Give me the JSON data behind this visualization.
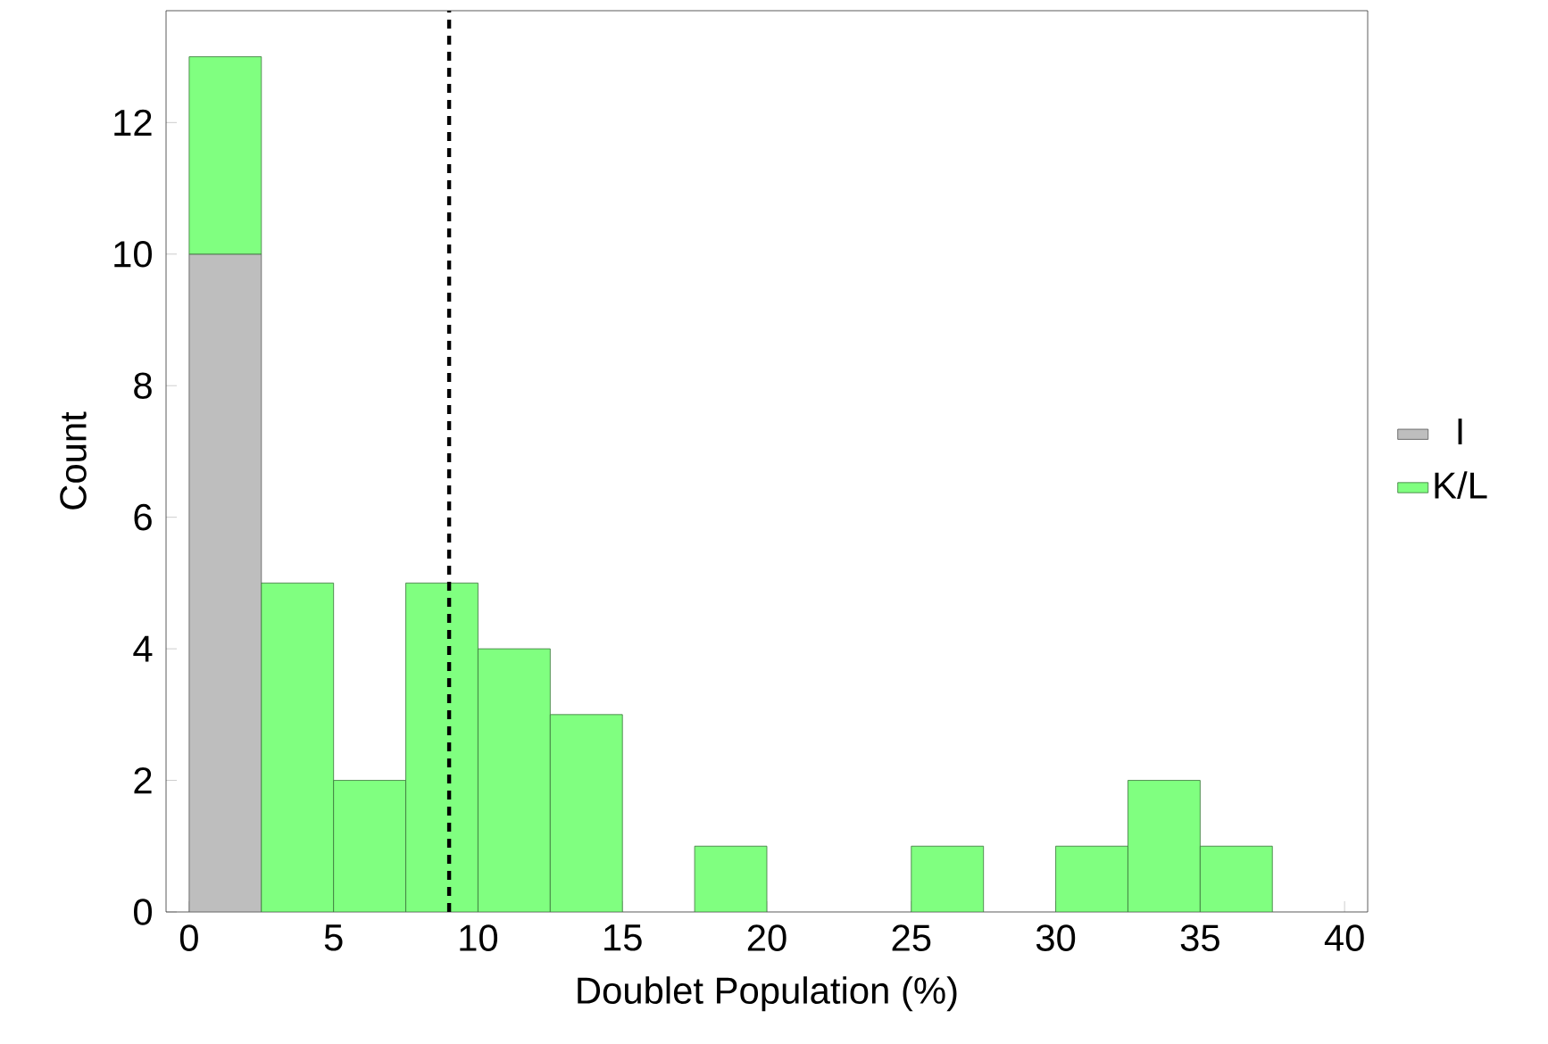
{
  "chart_data": {
    "type": "bar",
    "xlabel": "Doublet Population (%)",
    "ylabel": "Count",
    "x": [
      1.25,
      3.75,
      6.25,
      8.75,
      11.25,
      13.75,
      16.25,
      18.75,
      21.25,
      23.75,
      26.25,
      28.75,
      31.25,
      33.75,
      36.25
    ],
    "stacked": true,
    "series": [
      {
        "name": "I",
        "color": "#bebebe",
        "values": [
          10,
          0,
          0,
          0,
          0,
          0,
          0,
          0,
          0,
          0,
          0,
          0,
          0,
          0,
          0
        ]
      },
      {
        "name": "K/L",
        "color": "#80ff80",
        "values": [
          3,
          5,
          2,
          5,
          4,
          3,
          0,
          1,
          0,
          0,
          1,
          0,
          1,
          2,
          1
        ]
      }
    ],
    "xlim": [
      -0.8,
      40.8
    ],
    "ylim": [
      0,
      13.7
    ],
    "xticks": [
      0,
      5,
      10,
      15,
      20,
      25,
      30,
      35,
      40
    ],
    "yticks": [
      0,
      2,
      4,
      6,
      8,
      10,
      12
    ],
    "legend": "right",
    "ref_lines": [
      {
        "axis": "x",
        "value": 9,
        "line_style": "dashed",
        "color": "#000000"
      }
    ]
  }
}
